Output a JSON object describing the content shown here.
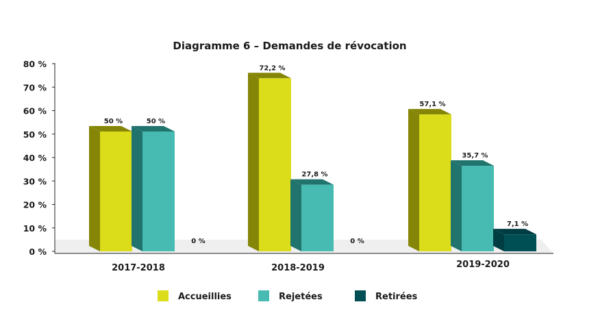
{
  "chart_data": {
    "type": "bar",
    "style": "3d-grouped",
    "title": "Diagramme 6 – Demandes de révocation",
    "xlabel": "",
    "ylabel": "",
    "ylim": [
      0,
      80
    ],
    "yticks": [
      "0 %",
      "10 %",
      "20 %",
      "30 %",
      "40 %",
      "50 %",
      "60 %",
      "70 %",
      "80 %"
    ],
    "categories": [
      "2017-2018",
      "2018-2019",
      "2019-2020"
    ],
    "series": [
      {
        "name": "Accueillies",
        "color": "#dbdc1a",
        "side_color": "#858607",
        "values": [
          50,
          72.2,
          57.1
        ],
        "labels": [
          "50 %",
          "72,2 %",
          "57,1 %"
        ]
      },
      {
        "name": "Rejetées",
        "color": "#47bab1",
        "side_color": "#21736d",
        "values": [
          50,
          27.8,
          35.7
        ],
        "labels": [
          "50 %",
          "27,8 %",
          "35,7 %"
        ]
      },
      {
        "name": "Retirées",
        "color": "#004f55",
        "side_color": "#003d42",
        "values": [
          0,
          0,
          7.1
        ],
        "labels": [
          "0 %",
          "0 %",
          "7,1 %"
        ]
      }
    ],
    "grid": false,
    "legend_position": "bottom"
  }
}
